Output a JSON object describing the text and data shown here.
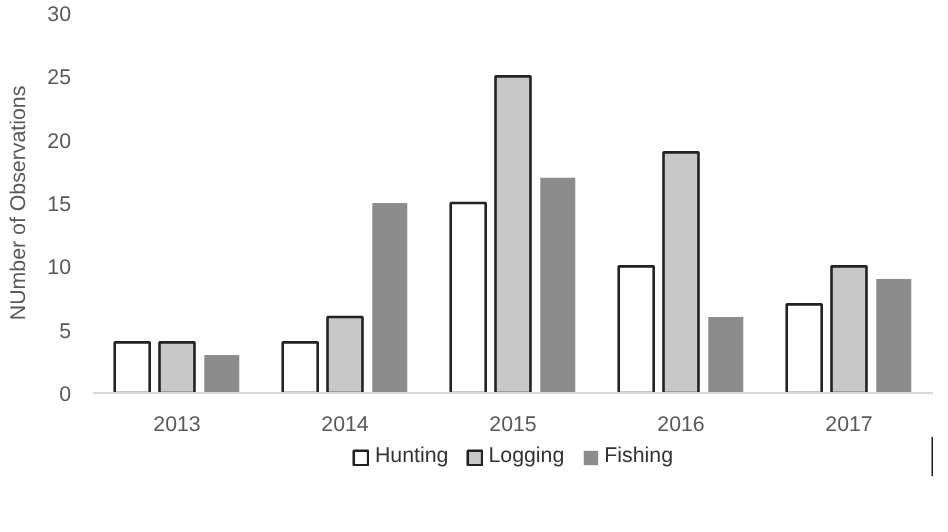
{
  "chart_data": {
    "type": "bar",
    "ylabel": "NUmber of Observations",
    "categories": [
      "2013",
      "2014",
      "2015",
      "2016",
      "2017"
    ],
    "series": [
      {
        "name": "Hunting",
        "color": "#ffffff",
        "values": [
          4,
          4,
          15,
          10,
          7
        ]
      },
      {
        "name": "Logging",
        "color": "#c8c8c8",
        "values": [
          4,
          6,
          25,
          19,
          10
        ]
      },
      {
        "name": "Fishing",
        "color": "#8c8c8c",
        "values": [
          3,
          15,
          17,
          6,
          9
        ]
      }
    ],
    "ylim": [
      0,
      30
    ],
    "yticks": [
      0,
      5,
      10,
      15,
      20,
      25,
      30
    ],
    "grid": false,
    "legend": "bottom"
  }
}
